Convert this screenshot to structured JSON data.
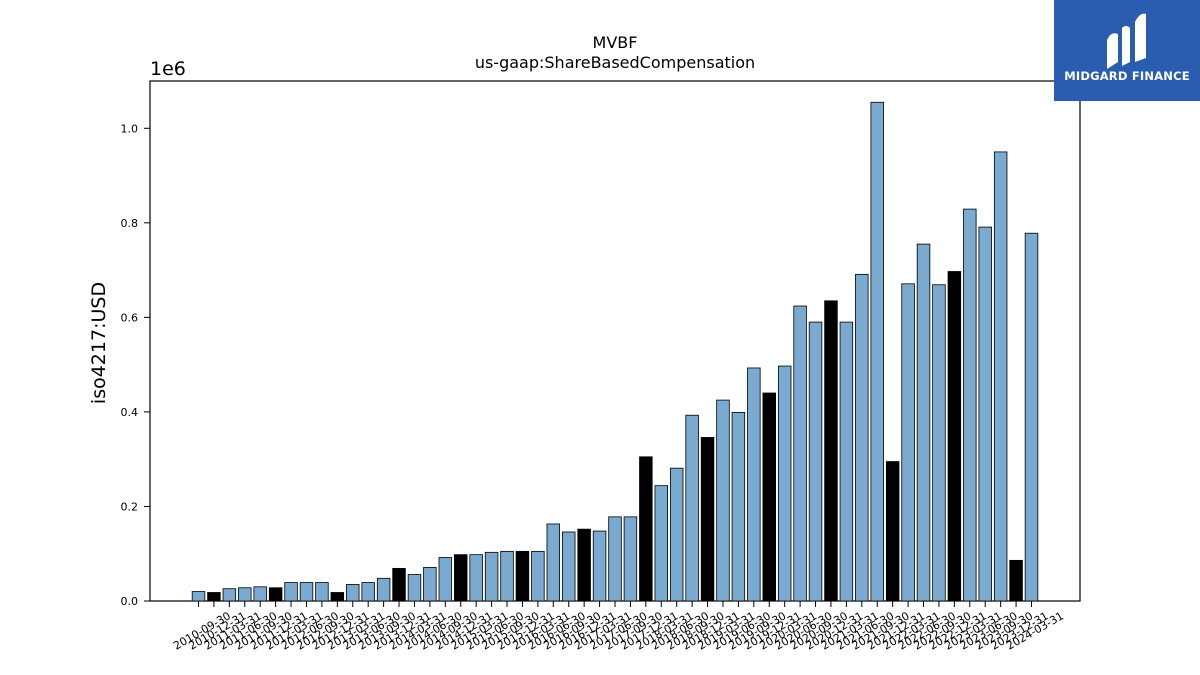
{
  "chart_data": {
    "type": "bar",
    "title": "MVBF",
    "subtitle": "us-gaap:ShareBasedCompensation",
    "ylabel": "iso4217:USD",
    "xlabel": "",
    "y_multiplier_label": "1e6",
    "ylim": [
      0,
      1.1
    ],
    "yticks": [
      "0.0",
      "0.2",
      "0.4",
      "0.6",
      "0.8",
      "1.0"
    ],
    "legend": "none",
    "grid": false,
    "colors": {
      "quarter": "#7aaad0",
      "annual": "#000000"
    },
    "categories": [
      "2010-09-30",
      "2010-12-31",
      "2011-03-31",
      "2011-06-30",
      "2011-09-30",
      "2011-12-31",
      "2012-03-31",
      "2012-06-30",
      "2012-09-30",
      "2012-12-31",
      "2013-03-31",
      "2013-06-30",
      "2013-09-30",
      "2013-12-31",
      "2014-03-31",
      "2014-06-30",
      "2014-09-30",
      "2014-12-31",
      "2015-03-31",
      "2015-06-30",
      "2015-09-30",
      "2015-12-31",
      "2016-03-31",
      "2016-06-30",
      "2016-09-30",
      "2016-12-31",
      "2017-03-31",
      "2017-06-30",
      "2017-09-30",
      "2017-12-31",
      "2018-03-31",
      "2018-06-30",
      "2018-09-30",
      "2018-12-31",
      "2019-03-31",
      "2019-06-30",
      "2019-09-30",
      "2019-12-31",
      "2020-03-31",
      "2020-06-30",
      "2020-09-30",
      "2020-12-31",
      "2021-03-31",
      "2021-06-30",
      "2021-09-30",
      "2021-12-31",
      "2022-03-31",
      "2022-06-30",
      "2022-09-30",
      "2022-12-31",
      "2023-03-31",
      "2023-06-30",
      "2023-09-30",
      "2023-12-31",
      "2024-03-31"
    ],
    "series": [
      {
        "values": [
          0.02,
          0.018,
          0.026,
          0.028,
          0.03,
          0.028,
          0.039,
          0.039,
          0.039,
          0.018,
          0.035,
          0.039,
          0.048,
          0.069,
          0.056,
          0.071,
          0.092,
          0.098,
          0.098,
          0.103,
          0.105,
          0.105,
          0.105,
          0.163,
          0.146,
          0.152,
          0.148,
          0.178,
          0.178,
          0.305,
          0.244,
          0.281,
          0.393,
          0.346,
          0.425,
          0.399,
          0.493,
          0.44,
          0.497,
          0.624,
          0.59,
          0.635,
          0.59,
          0.691,
          1.055,
          0.295,
          0.671,
          0.755,
          0.669,
          0.697,
          0.829,
          0.791,
          0.95,
          0.086,
          0.778
        ],
        "kinds": [
          "q",
          "a",
          "q",
          "q",
          "q",
          "a",
          "q",
          "q",
          "q",
          "a",
          "q",
          "q",
          "q",
          "a",
          "q",
          "q",
          "q",
          "a",
          "q",
          "q",
          "q",
          "a",
          "q",
          "q",
          "q",
          "a",
          "q",
          "q",
          "q",
          "a",
          "q",
          "q",
          "q",
          "a",
          "q",
          "q",
          "q",
          "a",
          "q",
          "q",
          "q",
          "a",
          "q",
          "q",
          "q",
          "a",
          "q",
          "q",
          "q",
          "a",
          "q",
          "q",
          "q",
          "a",
          "q"
        ]
      }
    ]
  },
  "logo": {
    "text": "MIDGARD FINANCE",
    "icon": "midgard-finance-logo-icon",
    "color": "#2a5db0"
  }
}
